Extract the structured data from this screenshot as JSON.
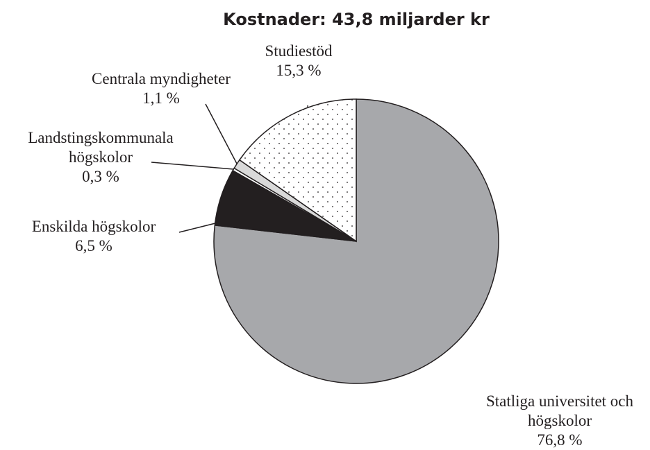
{
  "chart_data": {
    "type": "pie",
    "title": "Kostnader: 43,8 miljarder kr",
    "categories": [
      "Statliga universitet och högskolor",
      "Enskilda högskolor",
      "Landstingskommunala högskolor",
      "Centrala myndigheter",
      "Studiestöd"
    ],
    "values": [
      76.8,
      6.5,
      0.3,
      1.1,
      15.3
    ],
    "value_labels": [
      "76,8 %",
      "6,5 %",
      "0,3 %",
      "1,1 %",
      "15,3 %"
    ],
    "colors": [
      "#a7a8ab",
      "#231f20",
      "#ffffff",
      "#d9d9d9",
      "#ffffff"
    ],
    "hatches": [
      null,
      null,
      null,
      null,
      "dots"
    ]
  }
}
